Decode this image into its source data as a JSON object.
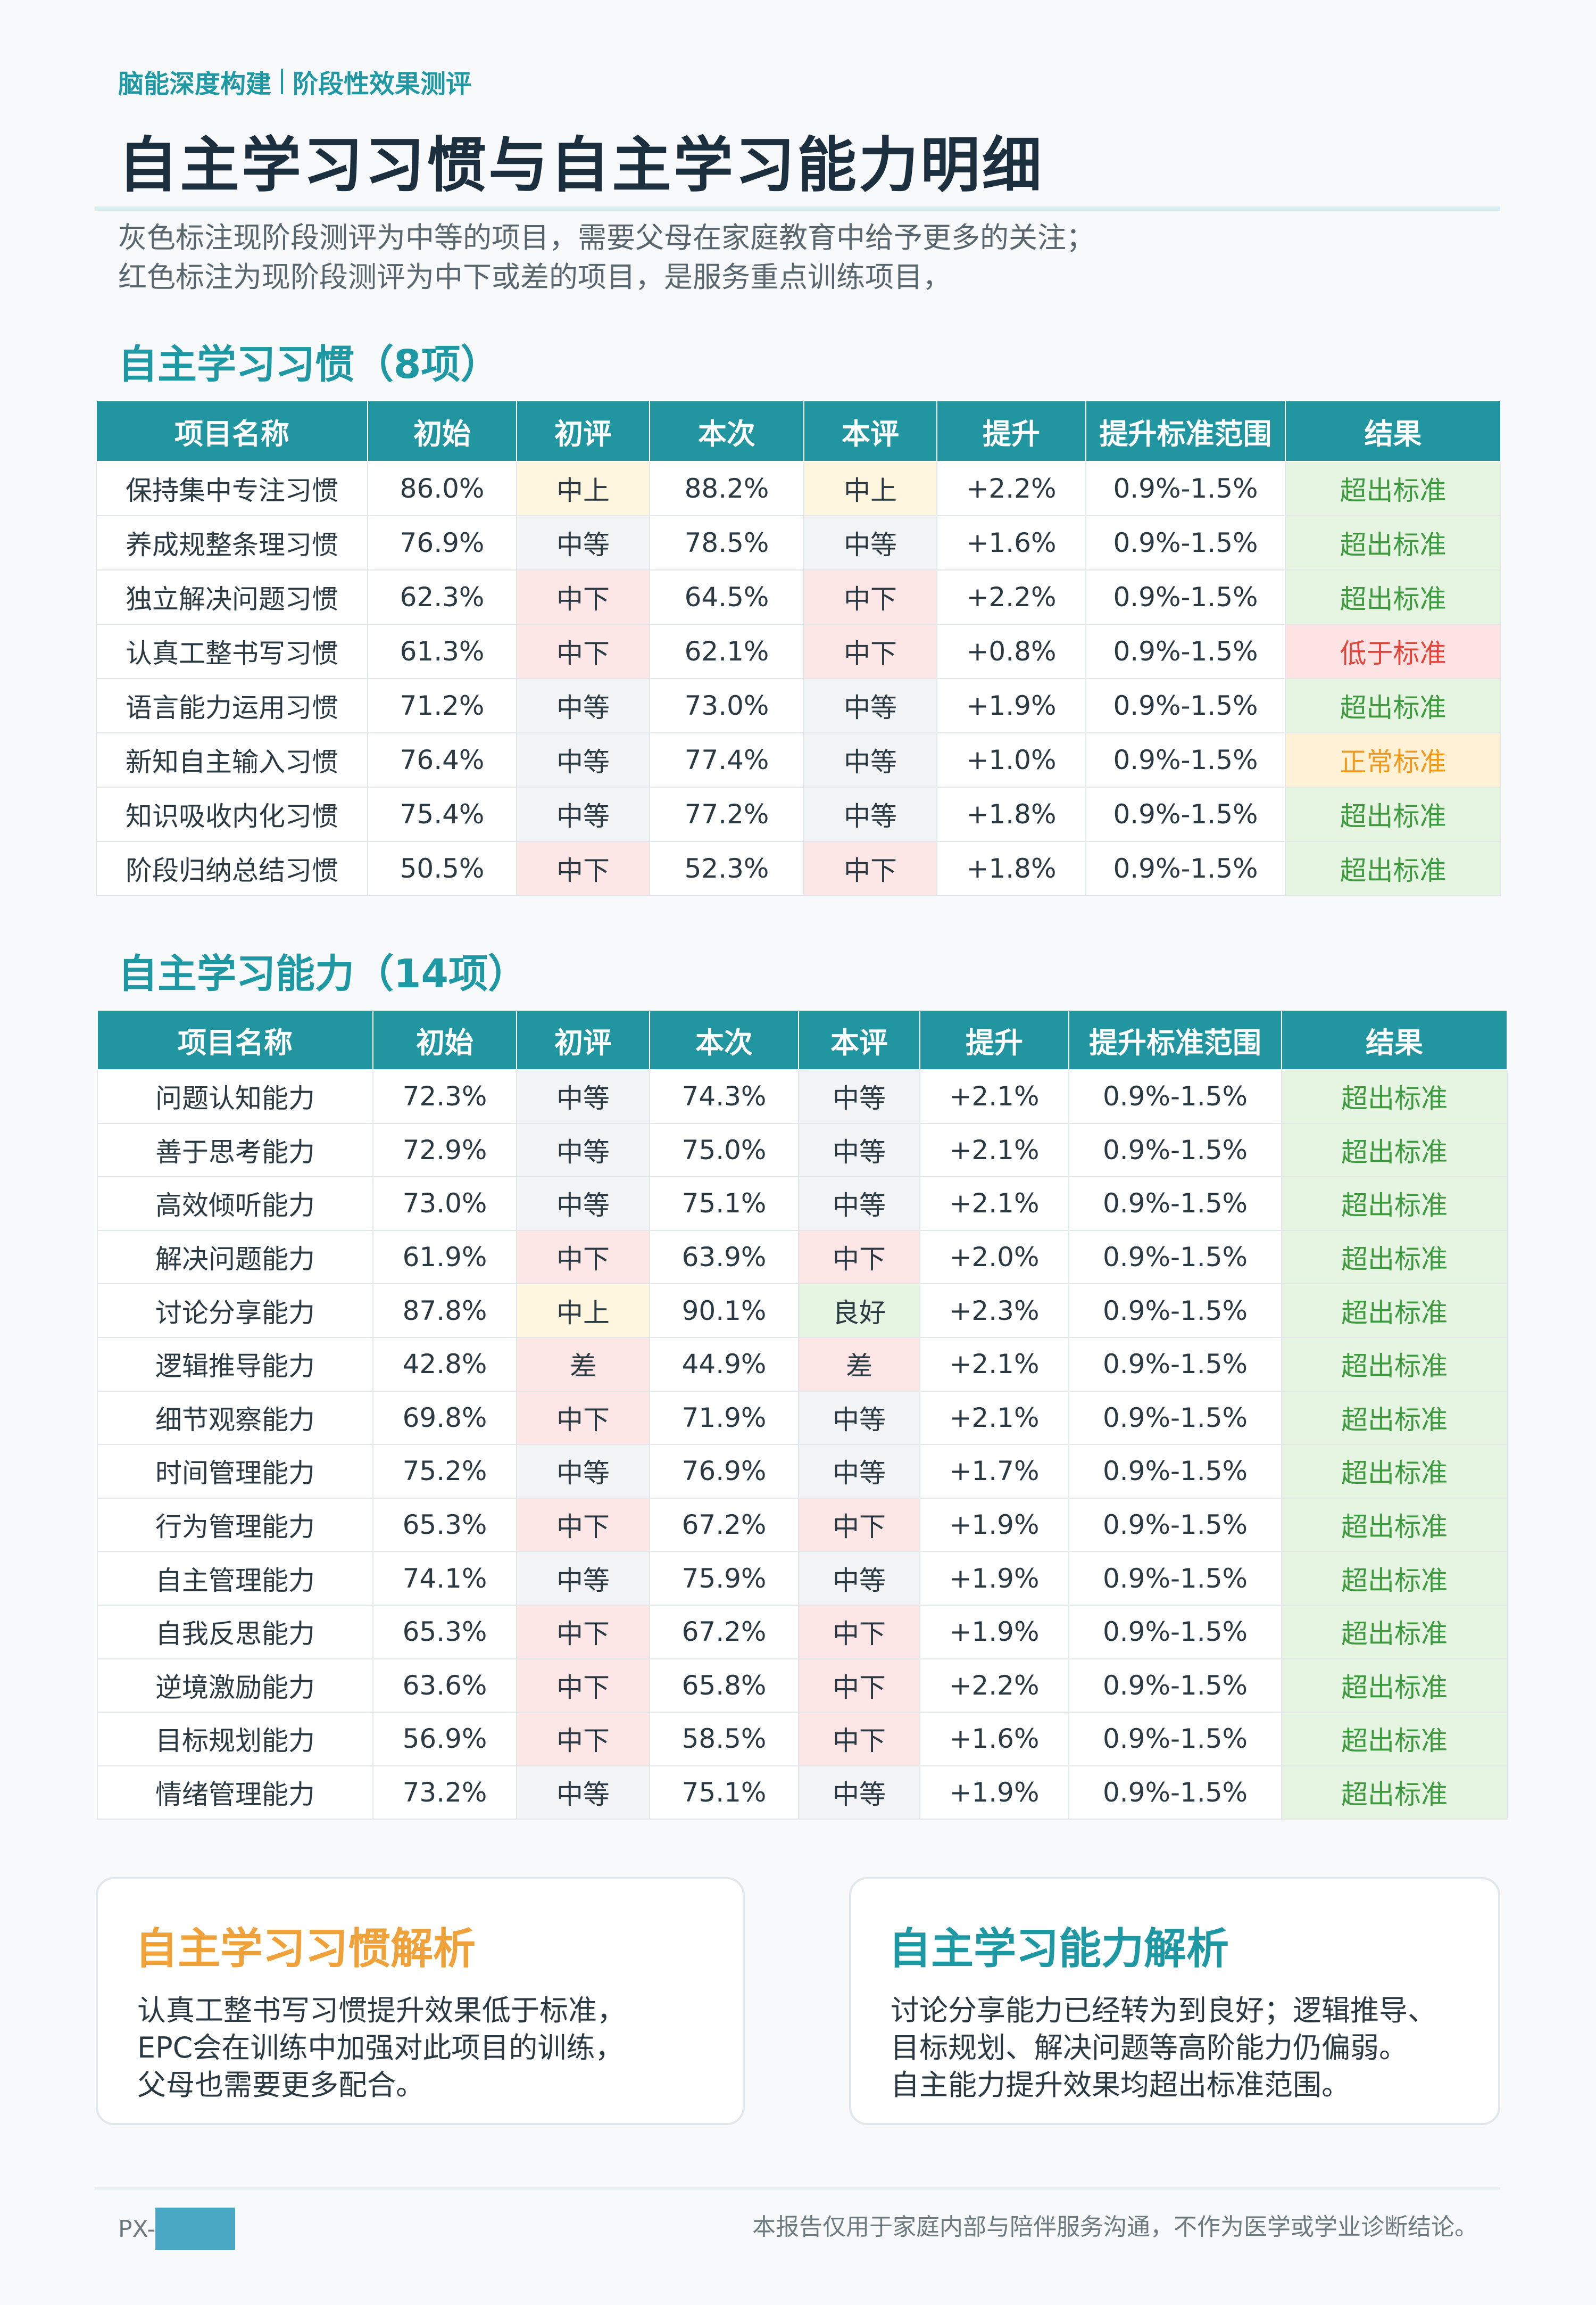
{
  "header": {
    "brand": "脑能深度构建",
    "subtitle": "阶段性效果测评",
    "title": "自主学习习惯与自主学习能力明细",
    "intro_line1": "灰色标注现阶段测评为中等的项目，需要父母在家庭教育中给予更多的关注；",
    "intro_line2": "红色标注为现阶段测评为中下或差的项目，是服务重点训练项目，"
  },
  "columns": [
    "项目名称",
    "初始",
    "初评",
    "本次",
    "本评",
    "提升",
    "提升标准范围",
    "结果"
  ],
  "habits": {
    "title": "自主学习习惯（8项）",
    "rows": [
      [
        "保持集中专注习惯",
        "86.0%",
        "中上",
        "88.2%",
        "中上",
        "+2.2%",
        "0.9%-1.5%",
        "超出标准"
      ],
      [
        "养成规整条理习惯",
        "76.9%",
        "中等",
        "78.5%",
        "中等",
        "+1.6%",
        "0.9%-1.5%",
        "超出标准"
      ],
      [
        "独立解决问题习惯",
        "62.3%",
        "中下",
        "64.5%",
        "中下",
        "+2.2%",
        "0.9%-1.5%",
        "超出标准"
      ],
      [
        "认真工整书写习惯",
        "61.3%",
        "中下",
        "62.1%",
        "中下",
        "+0.8%",
        "0.9%-1.5%",
        "低于标准"
      ],
      [
        "语言能力运用习惯",
        "71.2%",
        "中等",
        "73.0%",
        "中等",
        "+1.9%",
        "0.9%-1.5%",
        "超出标准"
      ],
      [
        "新知自主输入习惯",
        "76.4%",
        "中等",
        "77.4%",
        "中等",
        "+1.0%",
        "0.9%-1.5%",
        "正常标准"
      ],
      [
        "知识吸收内化习惯",
        "75.4%",
        "中等",
        "77.2%",
        "中等",
        "+1.8%",
        "0.9%-1.5%",
        "超出标准"
      ],
      [
        "阶段归纳总结习惯",
        "50.5%",
        "中下",
        "52.3%",
        "中下",
        "+1.8%",
        "0.9%-1.5%",
        "超出标准"
      ]
    ]
  },
  "abilities": {
    "title": "自主学习能力（14项）",
    "rows": [
      [
        "问题认知能力",
        "72.3%",
        "中等",
        "74.3%",
        "中等",
        "+2.1%",
        "0.9%-1.5%",
        "超出标准"
      ],
      [
        "善于思考能力",
        "72.9%",
        "中等",
        "75.0%",
        "中等",
        "+2.1%",
        "0.9%-1.5%",
        "超出标准"
      ],
      [
        "高效倾听能力",
        "73.0%",
        "中等",
        "75.1%",
        "中等",
        "+2.1%",
        "0.9%-1.5%",
        "超出标准"
      ],
      [
        "解决问题能力",
        "61.9%",
        "中下",
        "63.9%",
        "中下",
        "+2.0%",
        "0.9%-1.5%",
        "超出标准"
      ],
      [
        "讨论分享能力",
        "87.8%",
        "中上",
        "90.1%",
        "良好",
        "+2.3%",
        "0.9%-1.5%",
        "超出标准"
      ],
      [
        "逻辑推导能力",
        "42.8%",
        "差",
        "44.9%",
        "差",
        "+2.1%",
        "0.9%-1.5%",
        "超出标准"
      ],
      [
        "细节观察能力",
        "69.8%",
        "中下",
        "71.9%",
        "中等",
        "+2.1%",
        "0.9%-1.5%",
        "超出标准"
      ],
      [
        "时间管理能力",
        "75.2%",
        "中等",
        "76.9%",
        "中等",
        "+1.7%",
        "0.9%-1.5%",
        "超出标准"
      ],
      [
        "行为管理能力",
        "65.3%",
        "中下",
        "67.2%",
        "中下",
        "+1.9%",
        "0.9%-1.5%",
        "超出标准"
      ],
      [
        "自主管理能力",
        "74.1%",
        "中等",
        "75.9%",
        "中等",
        "+1.9%",
        "0.9%-1.5%",
        "超出标准"
      ],
      [
        "自我反思能力",
        "65.3%",
        "中下",
        "67.2%",
        "中下",
        "+1.9%",
        "0.9%-1.5%",
        "超出标准"
      ],
      [
        "逆境激励能力",
        "63.6%",
        "中下",
        "65.8%",
        "中下",
        "+2.2%",
        "0.9%-1.5%",
        "超出标准"
      ],
      [
        "目标规划能力",
        "56.9%",
        "中下",
        "58.5%",
        "中下",
        "+1.6%",
        "0.9%-1.5%",
        "超出标准"
      ],
      [
        "情绪管理能力",
        "73.2%",
        "中等",
        "75.1%",
        "中等",
        "+1.9%",
        "0.9%-1.5%",
        "超出标准"
      ]
    ]
  },
  "cards": {
    "habits_title": "自主学习习惯解析",
    "habits_body": [
      "认真工整书写习惯提升效果低于标准，",
      "EPC会在训练中加强对此项目的训练，",
      "父母也需要更多配合。"
    ],
    "abilities_title": "自主学习能力解析",
    "abilities_body": [
      "讨论分享能力已经转为到良好；逻辑推导、",
      "目标规划、解决问题等高阶能力仍偏弱。",
      "自主能力提升效果均超出标准范围。"
    ]
  },
  "footer": {
    "page_label": "PX-",
    "disclaimer": "本报告仅用于家庭内部与陪伴服务沟通，不作为医学或学业诊断结论。"
  },
  "colors": {
    "accent": "#1e98a3",
    "header_bg": "#2196a1",
    "habits_card_title": "#f0a23a",
    "abilities_card_title": "#1e98a3"
  }
}
